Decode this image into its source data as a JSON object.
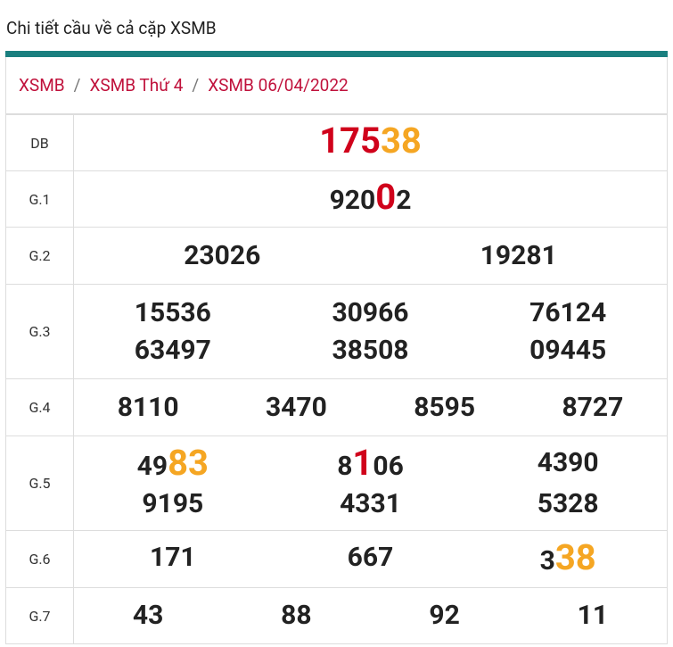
{
  "header": {
    "title": "Chi tiết cầu về cả cặp XSMB"
  },
  "breadcrumb": {
    "items": [
      "XSMB",
      "XSMB Thứ 4",
      "XSMB 06/04/2022"
    ],
    "separator": "/"
  },
  "table": {
    "rows": [
      {
        "label": "DB",
        "numbers": [
          [
            {
              "text": "175",
              "mark": "red"
            },
            {
              "text": "38",
              "mark": "orange"
            }
          ]
        ]
      },
      {
        "label": "G.1",
        "numbers": [
          [
            "920",
            {
              "text": "0",
              "mark": "red"
            },
            "2"
          ]
        ]
      },
      {
        "label": "G.2",
        "numbers": [
          [
            "23026"
          ],
          [
            "19281"
          ]
        ]
      },
      {
        "label": "G.3",
        "numbers": [
          [
            "15536"
          ],
          [
            "30966"
          ],
          [
            "76124"
          ],
          [
            "63497"
          ],
          [
            "38508"
          ],
          [
            "09445"
          ]
        ]
      },
      {
        "label": "G.4",
        "numbers": [
          [
            "8110"
          ],
          [
            "3470"
          ],
          [
            "8595"
          ],
          [
            "8727"
          ]
        ]
      },
      {
        "label": "G.5",
        "numbers": [
          [
            "49",
            {
              "text": "83",
              "mark": "orange"
            }
          ],
          [
            "8",
            {
              "text": "1",
              "mark": "red"
            },
            "06"
          ],
          [
            "4390"
          ],
          [
            "9195"
          ],
          [
            "4331"
          ],
          [
            "5328"
          ]
        ]
      },
      {
        "label": "G.6",
        "numbers": [
          [
            "171"
          ],
          [
            "667"
          ],
          [
            "3",
            {
              "text": "38",
              "mark": "orange"
            }
          ]
        ]
      },
      {
        "label": "G.7",
        "numbers": [
          [
            "43"
          ],
          [
            "88"
          ],
          [
            "92"
          ],
          [
            "11"
          ]
        ]
      }
    ]
  }
}
